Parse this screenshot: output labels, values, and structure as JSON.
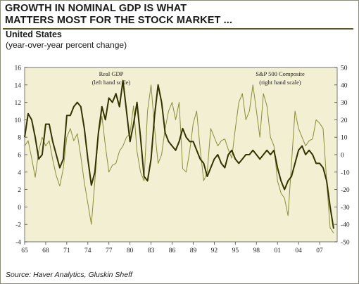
{
  "header": {
    "title_line1": "GROWTH IN NOMINAL GDP IS WHAT",
    "title_line2": "MATTERS MOST FOR THE STOCK MARKET ...",
    "country": "United States",
    "units": "(year-over-year percent change)"
  },
  "footer": {
    "source": "Source: Haver Analytics, Gluskin Sheff"
  },
  "colors": {
    "plot_background": "#f2efd2",
    "gdp_line": "#333300",
    "sp500_line": "#8c8c3a",
    "rule": "#5a5a20"
  },
  "chart_data": {
    "type": "line",
    "x_tick_labels": [
      "65",
      "68",
      "71",
      "74",
      "77",
      "80",
      "83",
      "86",
      "89",
      "92",
      "95",
      "98",
      "01",
      "04",
      "07"
    ],
    "x_range": [
      1965,
      2009.5
    ],
    "left_axis": {
      "range": [
        -4,
        16
      ],
      "ticks": [
        "16",
        "14",
        "12",
        "10",
        "8",
        "6",
        "4",
        "2",
        "0",
        "-2",
        "-4"
      ]
    },
    "right_axis": {
      "range": [
        -50,
        50
      ],
      "ticks": [
        "50",
        "40",
        "30",
        "20",
        "10",
        "0",
        "-10",
        "-20",
        "-30",
        "-40",
        "-50"
      ]
    },
    "annotations": [
      {
        "line1": "Real GDP",
        "line2": "(left hand scale)"
      },
      {
        "line1": "S&P 500 Composite",
        "line2": "(right hand scale)"
      }
    ],
    "series": [
      {
        "name": "Real GDP",
        "axis": "left",
        "x": [
          1965,
          1965.5,
          1966,
          1966.5,
          1967,
          1967.5,
          1968,
          1968.5,
          1969,
          1969.5,
          1970,
          1970.5,
          1971,
          1971.5,
          1972,
          1972.5,
          1973,
          1973.5,
          1974,
          1974.5,
          1975,
          1975.5,
          1976,
          1976.5,
          1977,
          1977.5,
          1978,
          1978.5,
          1979,
          1979.5,
          1980,
          1980.5,
          1981,
          1981.5,
          1982,
          1982.5,
          1983,
          1983.5,
          1984,
          1984.5,
          1985,
          1985.5,
          1986,
          1986.5,
          1987,
          1987.5,
          1988,
          1988.5,
          1989,
          1989.5,
          1990,
          1990.5,
          1991,
          1991.5,
          1992,
          1992.5,
          1993,
          1993.5,
          1994,
          1994.5,
          1995,
          1995.5,
          1996,
          1996.5,
          1997,
          1997.5,
          1998,
          1998.5,
          1999,
          1999.5,
          2000,
          2000.5,
          2001,
          2001.5,
          2002,
          2002.5,
          2003,
          2003.5,
          2004,
          2004.5,
          2005,
          2005.5,
          2006,
          2006.5,
          2007,
          2007.5,
          2008,
          2008.5,
          2009
        ],
        "values": [
          8,
          10.7,
          10,
          8,
          5.5,
          6,
          9.5,
          9.5,
          7.5,
          6,
          4.5,
          5.5,
          10.5,
          10.5,
          11.5,
          12,
          11.5,
          9,
          5.5,
          2.5,
          4,
          8.5,
          11.5,
          10,
          12.5,
          12,
          13,
          11.5,
          14.5,
          11,
          7.5,
          9.5,
          12,
          8,
          3.5,
          3,
          5.5,
          10.5,
          14,
          12,
          8.5,
          7.5,
          7,
          6.5,
          7.5,
          9,
          8,
          7.5,
          7.5,
          6.5,
          5.5,
          5,
          3.5,
          4.5,
          5.5,
          6,
          5,
          4.5,
          6,
          6.5,
          5.5,
          5,
          5.5,
          6,
          6,
          6.5,
          6,
          5.5,
          6,
          6.5,
          6,
          6.5,
          4.5,
          3,
          2,
          3,
          3.5,
          5,
          6.5,
          7,
          6,
          6.5,
          6,
          5,
          5,
          4.5,
          3,
          0,
          -2.5
        ]
      },
      {
        "name": "S&P 500 Composite",
        "axis": "right",
        "x": [
          1965,
          1965.5,
          1966,
          1966.5,
          1967,
          1967.5,
          1968,
          1968.5,
          1969,
          1969.5,
          1970,
          1970.5,
          1971,
          1971.5,
          1972,
          1972.5,
          1973,
          1973.5,
          1974,
          1974.5,
          1975,
          1975.5,
          1976,
          1976.5,
          1977,
          1977.5,
          1978,
          1978.5,
          1979,
          1979.5,
          1980,
          1980.5,
          1981,
          1981.5,
          1982,
          1982.5,
          1983,
          1983.5,
          1984,
          1984.5,
          1985,
          1985.5,
          1986,
          1986.5,
          1987,
          1987.5,
          1988,
          1988.5,
          1989,
          1989.5,
          1990,
          1990.5,
          1991,
          1991.5,
          1992,
          1992.5,
          1993,
          1993.5,
          1994,
          1994.5,
          1995,
          1995.5,
          1996,
          1996.5,
          1997,
          1997.5,
          1998,
          1998.5,
          1999,
          1999.5,
          2000,
          2000.5,
          2001,
          2001.5,
          2002,
          2002.5,
          2003,
          2003.5,
          2004,
          2004.5,
          2005,
          2005.5,
          2006,
          2006.5,
          2007,
          2007.5,
          2008,
          2008.5,
          2009
        ],
        "values": [
          5,
          8,
          -2,
          -13,
          2,
          10,
          5,
          8,
          -3,
          -12,
          -18,
          -8,
          10,
          15,
          8,
          12,
          -1,
          -16,
          -28,
          -40,
          -15,
          12,
          22,
          5,
          -10,
          -6,
          -5,
          2,
          5,
          10,
          12,
          28,
          2,
          -10,
          -15,
          25,
          40,
          15,
          -5,
          0,
          15,
          25,
          30,
          20,
          30,
          -8,
          -10,
          2,
          18,
          25,
          3,
          -15,
          -10,
          15,
          10,
          5,
          8,
          9,
          3,
          -2,
          15,
          30,
          35,
          20,
          25,
          40,
          25,
          10,
          35,
          28,
          10,
          5,
          -15,
          -22,
          -25,
          -35,
          -5,
          25,
          15,
          10,
          5,
          8,
          9,
          20,
          18,
          15,
          -15,
          -42,
          -45
        ]
      }
    ]
  }
}
